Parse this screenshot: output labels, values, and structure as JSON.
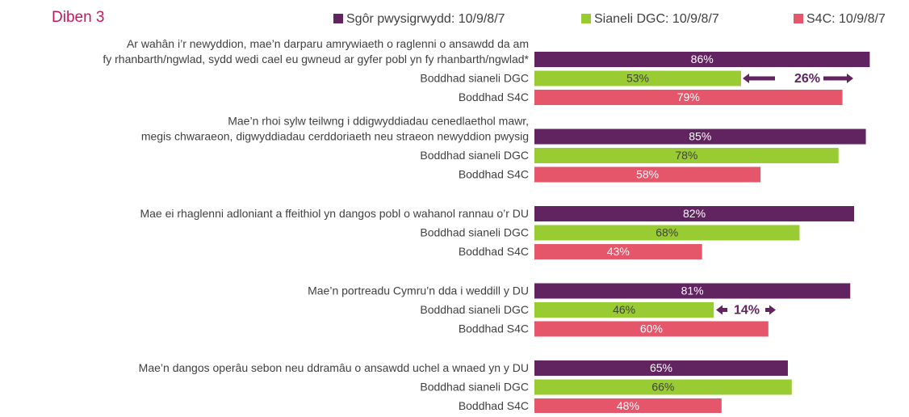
{
  "chart_data": {
    "type": "bar",
    "orientation": "horizontal",
    "title": "Diben 3",
    "categories": [
      [
        "Ar wahân i’r newyddion, mae’n darparu amrywiaeth o raglenni o ansawdd da am",
        "fy rhanbarth/ngwlad, sydd wedi cael eu gwneud ar gyfer pobl yn fy rhanbarth/ngwlad*"
      ],
      [
        "Mae’n rhoi sylw teilwng i ddigwyddiadau cenedlaethol mawr,",
        "megis chwaraeon, digwyddiadau cerddoriaeth neu straeon newyddion pwysig"
      ],
      [
        "Mae ei rhaglenni adloniant a ffeithiol yn dangos pobl o wahanol rannau o’r DU"
      ],
      [
        "Mae’n portreadu Cymru’n dda i weddill y DU"
      ],
      [
        "Mae’n dangos operâu sebon neu ddramâu o ansawdd uchel a wnaed yn y DU"
      ]
    ],
    "series": [
      {
        "name": "Sgôr pwysigrwydd: 10/9/8/7",
        "color": "#612461",
        "values": [
          86,
          85,
          82,
          81,
          65
        ],
        "value_labels": [
          "86%",
          "85%",
          "82%",
          "81%",
          "65%"
        ]
      },
      {
        "name": "Sianeli DGC: 10/9/8/7",
        "color": "#99cc33",
        "row_label": "Boddhad sianeli DGC",
        "values": [
          53,
          78,
          68,
          46,
          66
        ],
        "value_labels": [
          "53%",
          "78%",
          "68%",
          "46%",
          "66%"
        ]
      },
      {
        "name": "S4C: 10/9/8/7",
        "color": "#e5566a",
        "row_label": "Boddhad S4C",
        "values": [
          79,
          58,
          43,
          60,
          48
        ],
        "value_labels": [
          "79%",
          "58%",
          "43%",
          "60%",
          "48%"
        ]
      }
    ],
    "annotations": [
      {
        "text": "26%"
      },
      {
        "text": "14%"
      }
    ]
  }
}
